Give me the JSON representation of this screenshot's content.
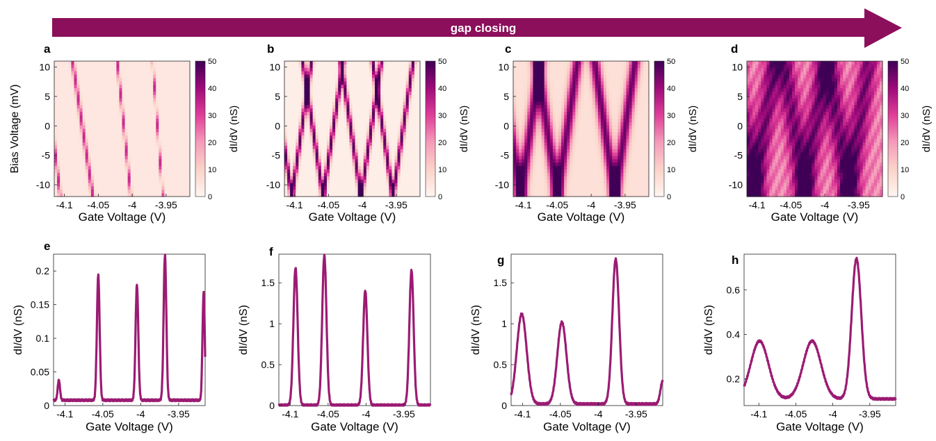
{
  "banner": {
    "text": "gap closing",
    "color": "#8b0f5a"
  },
  "colormap": {
    "stops": [
      "#fff5f0",
      "#fbd3c9",
      "#f59cba",
      "#df3f98",
      "#9e0a7a",
      "#3f0056"
    ]
  },
  "line_color": "#9b1b73",
  "chart_data": [
    {
      "panel": "a",
      "type": "heatmap",
      "xlabel": "Gate Voltage (V)",
      "ylabel": "Bias Voltage (mV)",
      "xticks": [
        "-4.1",
        "-4.05",
        "-4",
        "-3.95"
      ],
      "xtick_values": [
        -4.1,
        -4.05,
        -4,
        -3.95
      ],
      "yticks": [
        "10",
        "5",
        "0",
        "-5",
        "-10"
      ],
      "ytick_values": [
        10,
        5,
        0,
        -5,
        -10
      ],
      "xlim": [
        -4.115,
        -3.915
      ],
      "ylim": [
        -12,
        11
      ],
      "colorbar_label": "dI/dV (nS)",
      "colorbar_ticks": [
        "50",
        "40",
        "30",
        "20",
        "10",
        "0"
      ],
      "clim": [
        0,
        50
      ],
      "features": {
        "base": 4,
        "width": 0.75,
        "amp": 30,
        "lines": [
          [
            -4.106,
            -4.13
          ],
          [
            -4.058,
            -4.088
          ],
          [
            -4.002,
            -4.022
          ],
          [
            -3.955,
            -3.97
          ]
        ]
      }
    },
    {
      "panel": "b",
      "type": "heatmap",
      "xlabel": "Gate Voltage (V)",
      "ylabel": "",
      "xticks": [
        "-4.1",
        "-4.05",
        "-4",
        "-3.95"
      ],
      "xtick_values": [
        -4.1,
        -4.05,
        -4,
        -3.95
      ],
      "yticks": [
        "10",
        "5",
        "0",
        "-5",
        "-10"
      ],
      "ytick_values": [
        10,
        5,
        0,
        -5,
        -10
      ],
      "xlim": [
        -4.115,
        -3.915
      ],
      "ylim": [
        -12,
        11
      ],
      "colorbar_label": "dI/dV (nS)",
      "colorbar_ticks": [
        "50",
        "40",
        "30",
        "20",
        "10",
        "0"
      ],
      "clim": [
        0,
        50
      ],
      "features": {
        "base": 2,
        "width": 0.9,
        "amp": 45,
        "lines": [
          [
            -4.104,
            -4.075
          ],
          [
            -4.104,
            -4.135
          ],
          [
            -4.058,
            -4.028
          ],
          [
            -4.058,
            -4.088
          ],
          [
            -4.002,
            -3.972
          ],
          [
            -4.002,
            -4.032
          ],
          [
            -3.955,
            -3.925
          ],
          [
            -3.955,
            -3.985
          ]
        ]
      }
    },
    {
      "panel": "c",
      "type": "heatmap",
      "xlabel": "Gate Voltage (V)",
      "ylabel": "",
      "xticks": [
        "-4.1",
        "-4.05",
        "-4",
        "-3.95"
      ],
      "xtick_values": [
        -4.1,
        -4.05,
        -4,
        -3.95
      ],
      "yticks": [
        "10",
        "5",
        "0",
        "-5",
        "-10"
      ],
      "ytick_values": [
        10,
        5,
        0,
        -5,
        -10
      ],
      "xlim": [
        -4.115,
        -3.915
      ],
      "ylim": [
        -12,
        11
      ],
      "colorbar_label": "dI/dV (nS)",
      "colorbar_ticks": [
        "50",
        "40",
        "30",
        "20",
        "10",
        "0"
      ],
      "clim": [
        0,
        50
      ],
      "features": {
        "base": 6,
        "width": 2.2,
        "amp": 40,
        "lines": [
          [
            -4.104,
            -4.075
          ],
          [
            -4.104,
            -4.135
          ],
          [
            -4.05,
            -4.02
          ],
          [
            -4.05,
            -4.08
          ],
          [
            -3.965,
            -3.935
          ],
          [
            -3.965,
            -3.995
          ]
        ]
      }
    },
    {
      "panel": "d",
      "type": "heatmap",
      "xlabel": "Gate Voltage (V)",
      "ylabel": "",
      "xticks": [
        "-4.1",
        "-4.05",
        "-4",
        "-3.95"
      ],
      "xtick_values": [
        -4.1,
        -4.05,
        -4,
        -3.95
      ],
      "yticks": [
        "10",
        "5",
        "0",
        "-5",
        "-10"
      ],
      "ytick_values": [
        10,
        5,
        0,
        -5,
        -10
      ],
      "xlim": [
        -4.115,
        -3.915
      ],
      "ylim": [
        -12,
        11
      ],
      "colorbar_label": "dI/dV (nS)",
      "colorbar_ticks": [
        "50",
        "40",
        "30",
        "20",
        "10",
        "0"
      ],
      "clim": [
        0,
        50
      ],
      "features": {
        "base": 22,
        "width": 4,
        "amp": 22,
        "lines": [
          [
            -4.104,
            -4.075
          ],
          [
            -4.104,
            -4.135
          ],
          [
            -4.03,
            -4.0
          ],
          [
            -4.03,
            -4.06
          ],
          [
            -3.965,
            -3.935
          ],
          [
            -3.965,
            -3.995
          ]
        ]
      }
    },
    {
      "panel": "e",
      "type": "line",
      "xlabel": "Gate Voltage (V)",
      "ylabel": "dI/dV (nS)",
      "xticks": [
        "-4.1",
        "-4.05",
        "-4",
        "-3.95"
      ],
      "xtick_values": [
        -4.1,
        -4.05,
        -4,
        -3.95
      ],
      "yticks": [
        "0",
        "0.05",
        "0.1",
        "0.15",
        "0.2"
      ],
      "ytick_values": [
        0,
        0.05,
        0.1,
        0.15,
        0.2
      ],
      "xlim": [
        -4.115,
        -3.915
      ],
      "ylim": [
        0,
        0.225
      ],
      "baseline": 0.008,
      "peaks": [
        [
          -4.108,
          0.03,
          0.0015
        ],
        [
          -4.056,
          0.186,
          0.0018
        ],
        [
          -4.005,
          0.172,
          0.0018
        ],
        [
          -3.968,
          0.216,
          0.0018
        ],
        [
          -3.917,
          0.16,
          0.0015
        ]
      ]
    },
    {
      "panel": "f",
      "type": "line",
      "xlabel": "Gate Voltage (V)",
      "ylabel": "dI/dV (nS)",
      "xticks": [
        "-4.1",
        "-4.05",
        "-4",
        "-3.95"
      ],
      "xtick_values": [
        -4.1,
        -4.05,
        -4,
        -3.95
      ],
      "yticks": [
        "0",
        "0.5",
        "1",
        "1.5"
      ],
      "ytick_values": [
        0,
        0.5,
        1,
        1.5
      ],
      "xlim": [
        -4.115,
        -3.915
      ],
      "ylim": [
        0,
        1.85
      ],
      "baseline": 0.005,
      "peaks": [
        [
          -4.093,
          1.68,
          0.0028
        ],
        [
          -4.055,
          1.83,
          0.0028
        ],
        [
          -4.001,
          1.4,
          0.0028
        ],
        [
          -3.94,
          1.65,
          0.0028
        ]
      ]
    },
    {
      "panel": "g",
      "type": "line",
      "xlabel": "Gate Voltage (V)",
      "ylabel": "dI/dV (nS)",
      "xticks": [
        "-4.1",
        "-4.05",
        "-4",
        "-3.95"
      ],
      "xtick_values": [
        -4.1,
        -4.05,
        -4,
        -3.95
      ],
      "yticks": [
        "0",
        "0.5",
        "1",
        "1.5"
      ],
      "ytick_values": [
        0,
        0.5,
        1,
        1.5
      ],
      "xlim": [
        -4.115,
        -3.915
      ],
      "ylim": [
        0,
        1.85
      ],
      "baseline": 0.02,
      "peaks": [
        [
          -4.101,
          1.1,
          0.0065
        ],
        [
          -4.048,
          1.0,
          0.006
        ],
        [
          -3.977,
          1.77,
          0.0045
        ],
        [
          -3.915,
          0.28,
          0.003
        ]
      ]
    },
    {
      "panel": "h",
      "type": "line",
      "xlabel": "Gate Voltage (V)",
      "ylabel": "dI/dV (nS)",
      "xticks": [
        "-4.1",
        "-4.05",
        "-4",
        "-3.95"
      ],
      "xtick_values": [
        -4.1,
        -4.05,
        -4,
        -3.95
      ],
      "yticks": [
        "0.2",
        "0.4",
        "0.6"
      ],
      "ytick_values": [
        0.2,
        0.4,
        0.6
      ],
      "xlim": [
        -4.12,
        -3.915
      ],
      "ylim": [
        0.08,
        0.76
      ],
      "baseline": 0.11,
      "peaks": [
        [
          -4.099,
          0.26,
          0.012
        ],
        [
          -4.028,
          0.26,
          0.012
        ],
        [
          -3.968,
          0.63,
          0.0065
        ]
      ]
    }
  ]
}
